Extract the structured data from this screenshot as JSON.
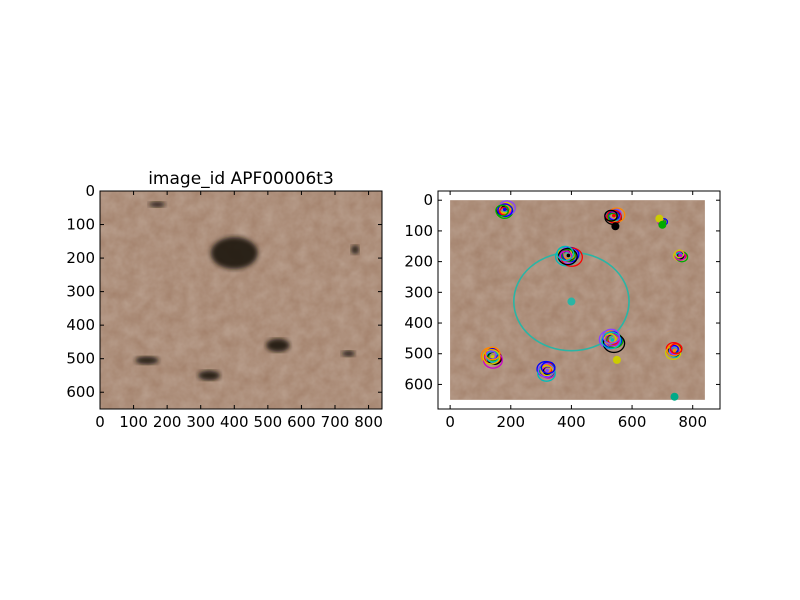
{
  "chart_data": [
    {
      "type": "image",
      "title": "image_id APF00006t3",
      "x_ticks": [
        0,
        100,
        200,
        300,
        400,
        500,
        600,
        700,
        800
      ],
      "y_ticks": [
        0,
        100,
        200,
        300,
        400,
        500,
        600
      ],
      "xlim": [
        0,
        840
      ],
      "ylim": [
        650,
        0
      ],
      "image_description": "Mars surface terrain with dark fan spots",
      "dark_spots": [
        {
          "x": 400,
          "y": 185,
          "rx": 70,
          "ry": 48
        },
        {
          "x": 170,
          "y": 40,
          "rx": 25,
          "ry": 8
        },
        {
          "x": 760,
          "y": 175,
          "rx": 12,
          "ry": 14
        },
        {
          "x": 530,
          "y": 460,
          "rx": 35,
          "ry": 20
        },
        {
          "x": 140,
          "y": 505,
          "rx": 35,
          "ry": 12
        },
        {
          "x": 325,
          "y": 550,
          "rx": 33,
          "ry": 15
        },
        {
          "x": 740,
          "y": 485,
          "rx": 20,
          "ry": 9
        }
      ]
    },
    {
      "type": "scatter",
      "x_ticks": [
        0,
        200,
        400,
        600,
        800
      ],
      "y_ticks": [
        0,
        100,
        200,
        300,
        400,
        500,
        600
      ],
      "xlim": [
        -40,
        890
      ],
      "ylim": [
        680,
        -30
      ],
      "image_extent": {
        "x": [
          0,
          840
        ],
        "y": [
          0,
          650
        ]
      },
      "cluster_colors": [
        "#0000ff",
        "#ff0000",
        "#00aa00",
        "#000000",
        "#cc00cc",
        "#00bbbb",
        "#cccc00",
        "#8844ff",
        "#ff8800"
      ],
      "clusters": [
        {
          "x": 180,
          "y": 30,
          "r": 26
        },
        {
          "x": 540,
          "y": 50,
          "r": 26
        },
        {
          "x": 700,
          "y": 70,
          "r": 12
        },
        {
          "x": 390,
          "y": 180,
          "r": 34
        },
        {
          "x": 760,
          "y": 180,
          "r": 18
        },
        {
          "x": 535,
          "y": 455,
          "r": 34
        },
        {
          "x": 140,
          "y": 510,
          "r": 30
        },
        {
          "x": 320,
          "y": 555,
          "r": 28
        },
        {
          "x": 740,
          "y": 490,
          "r": 24
        }
      ],
      "large_ellipse": {
        "x": 400,
        "y": 330,
        "rx": 190,
        "ry": 160,
        "angle": 0,
        "color": "#2ab5a5"
      },
      "markers": [
        {
          "x": 400,
          "y": 330,
          "color": "#2ab5a5"
        },
        {
          "x": 690,
          "y": 60,
          "color": "#cccc00"
        },
        {
          "x": 700,
          "y": 80,
          "color": "#00aa00"
        },
        {
          "x": 550,
          "y": 520,
          "color": "#cccc00"
        },
        {
          "x": 740,
          "y": 640,
          "color": "#00aa88"
        },
        {
          "x": 545,
          "y": 85,
          "color": "#000000"
        }
      ]
    }
  ]
}
